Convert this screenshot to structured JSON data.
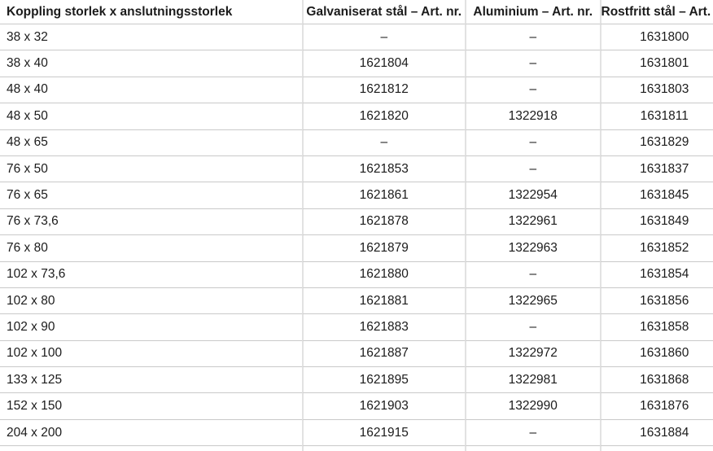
{
  "table": {
    "columns": [
      {
        "label": "Koppling storlek x anslutningsstorlek"
      },
      {
        "label": "Galvaniserat stål – Art. nr."
      },
      {
        "label": "Aluminium – Art. nr."
      },
      {
        "label": "Rostfritt stål – Art. nr."
      }
    ],
    "rows": [
      [
        "38 x 32",
        "–",
        "–",
        "1631800"
      ],
      [
        "38 x 40",
        "1621804",
        "–",
        "1631801"
      ],
      [
        "48 x 40",
        "1621812",
        "–",
        "1631803"
      ],
      [
        "48 x 50",
        "1621820",
        "1322918",
        "1631811"
      ],
      [
        "48 x 65",
        "–",
        "–",
        "1631829"
      ],
      [
        "76 x 50",
        "1621853",
        "–",
        "1631837"
      ],
      [
        "76 x 65",
        "1621861",
        "1322954",
        "1631845"
      ],
      [
        "76 x 73,6",
        "1621878",
        "1322961",
        "1631849"
      ],
      [
        "76 x 80",
        "1621879",
        "1322963",
        "1631852"
      ],
      [
        "102 x 73,6",
        "1621880",
        "–",
        "1631854"
      ],
      [
        "102 x 80",
        "1621881",
        "1322965",
        "1631856"
      ],
      [
        "102 x 90",
        "1621883",
        "–",
        "1631858"
      ],
      [
        "102 x 100",
        "1621887",
        "1322972",
        "1631860"
      ],
      [
        "133 x 125",
        "1621895",
        "1322981",
        "1631868"
      ],
      [
        "152 x 150",
        "1621903",
        "1322990",
        "1631876"
      ],
      [
        "204 x 200",
        "1621915",
        "–",
        "1631884"
      ]
    ]
  },
  "colors": {
    "text": "#1b1b1b",
    "background": "#ffffff",
    "row_divider": "#c9c9c9",
    "column_divider": "#e2e2e2"
  }
}
